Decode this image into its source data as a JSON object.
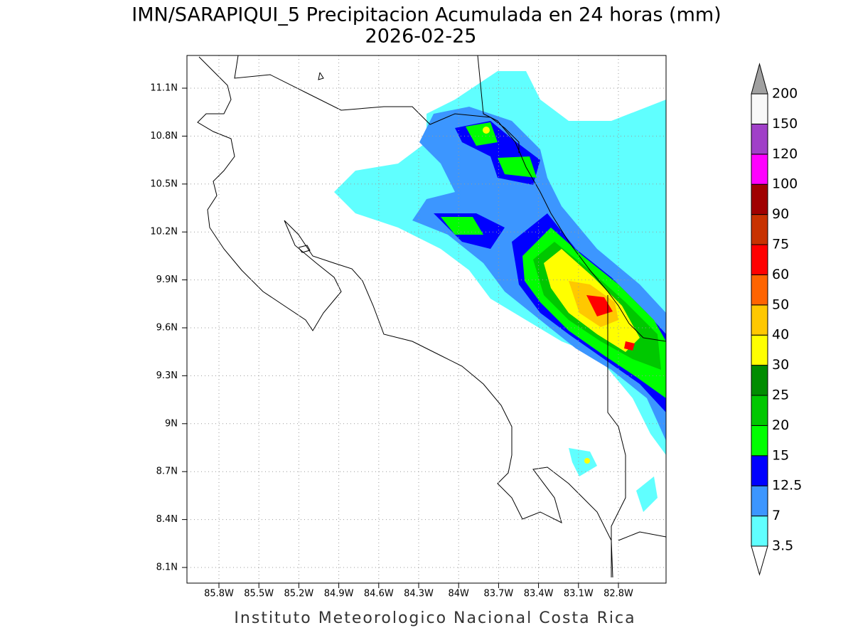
{
  "title": "IMN/SARAPIQUI_5 Precipitacion Acumulada en 24 horas (mm)",
  "subtitle": "2026-02-25",
  "lat_ticks": [
    "11.1N",
    "10.8N",
    "10.5N",
    "10.2N",
    "9.9N",
    "9.6N",
    "9.3N",
    "9N",
    "8.7N",
    "8.4N",
    "8.1N"
  ],
  "lon_ticks": [
    "85.8W",
    "85.5W",
    "85.2W",
    "84.9W",
    "84.6W",
    "84.3W",
    "84W",
    "83.7W",
    "83.4W",
    "83.1W",
    "82.8W"
  ],
  "colorbar": {
    "labels": [
      "3.5",
      "7",
      "12.5",
      "15",
      "20",
      "25",
      "30",
      "40",
      "50",
      "60",
      "75",
      "90",
      "100",
      "120",
      "150",
      "200"
    ],
    "colors": [
      "#60ffff",
      "#3c96ff",
      "#0000ff",
      "#00ff00",
      "#00c800",
      "#008c00",
      "#ffff00",
      "#ffc800",
      "#ff6400",
      "#ff0000",
      "#c83200",
      "#a00000",
      "#ff00ff",
      "#a040c8",
      "#f8f8f8"
    ],
    "under_color": "#ffffff",
    "over_color": "#a0a0a0"
  },
  "footer": "Instituto Meteorologico Nacional Costa Rica"
}
